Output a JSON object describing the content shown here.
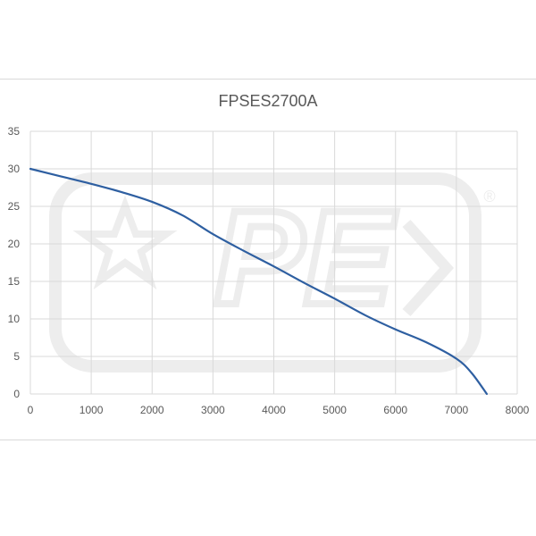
{
  "chart_data": {
    "type": "line",
    "title": "FPSES2700A",
    "xlabel": "",
    "ylabel": "",
    "xlim": [
      0,
      8000
    ],
    "ylim": [
      0,
      35
    ],
    "x_ticks": [
      0,
      1000,
      2000,
      3000,
      4000,
      5000,
      6000,
      7000,
      8000
    ],
    "y_ticks": [
      0,
      5,
      10,
      15,
      20,
      25,
      30,
      35
    ],
    "grid": true,
    "legend": "none",
    "series": [
      {
        "color": "#2e5fa1",
        "x": [
          0,
          500,
          1000,
          1500,
          2000,
          2500,
          3000,
          3500,
          4000,
          4500,
          5000,
          5500,
          6000,
          6500,
          7000,
          7250,
          7500
        ],
        "y": [
          30,
          29.0,
          28.0,
          26.9,
          25.6,
          23.8,
          21.3,
          19.1,
          17.0,
          14.8,
          12.7,
          10.5,
          8.6,
          6.9,
          4.7,
          2.8,
          0
        ]
      }
    ]
  },
  "watermark": {
    "text": "PE",
    "mark": "®",
    "color": "#ededed"
  }
}
